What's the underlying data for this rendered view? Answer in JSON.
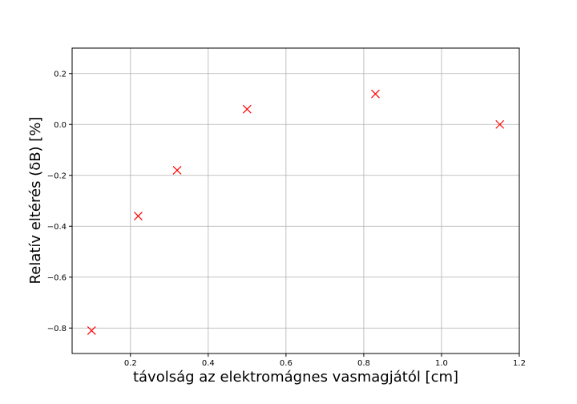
{
  "chart_data": {
    "type": "scatter",
    "xlabel": "távolság az elektromágnes vasmagjától [cm]",
    "ylabel": "Relatív eltérés (δB) [%]",
    "xlim": [
      0.05,
      1.2
    ],
    "ylim": [
      -0.9,
      0.3
    ],
    "xticks": [
      0.2,
      0.4,
      0.6,
      0.8,
      1.0,
      1.2
    ],
    "xtick_labels": [
      "0.2",
      "0.4",
      "0.6",
      "0.8",
      "1.0",
      "1.2"
    ],
    "yticks": [
      -0.8,
      -0.6,
      -0.4,
      -0.2,
      0.0,
      0.2
    ],
    "ytick_labels": [
      "−0.8",
      "−0.6",
      "−0.4",
      "−0.2",
      "0.0",
      "0.2"
    ],
    "grid": true,
    "marker": "x",
    "color": "#ff0000",
    "points": [
      {
        "x": 0.1,
        "y": -0.81
      },
      {
        "x": 0.22,
        "y": -0.36
      },
      {
        "x": 0.32,
        "y": -0.18
      },
      {
        "x": 0.5,
        "y": 0.06
      },
      {
        "x": 0.83,
        "y": 0.12
      },
      {
        "x": 1.15,
        "y": 0.0
      }
    ]
  }
}
